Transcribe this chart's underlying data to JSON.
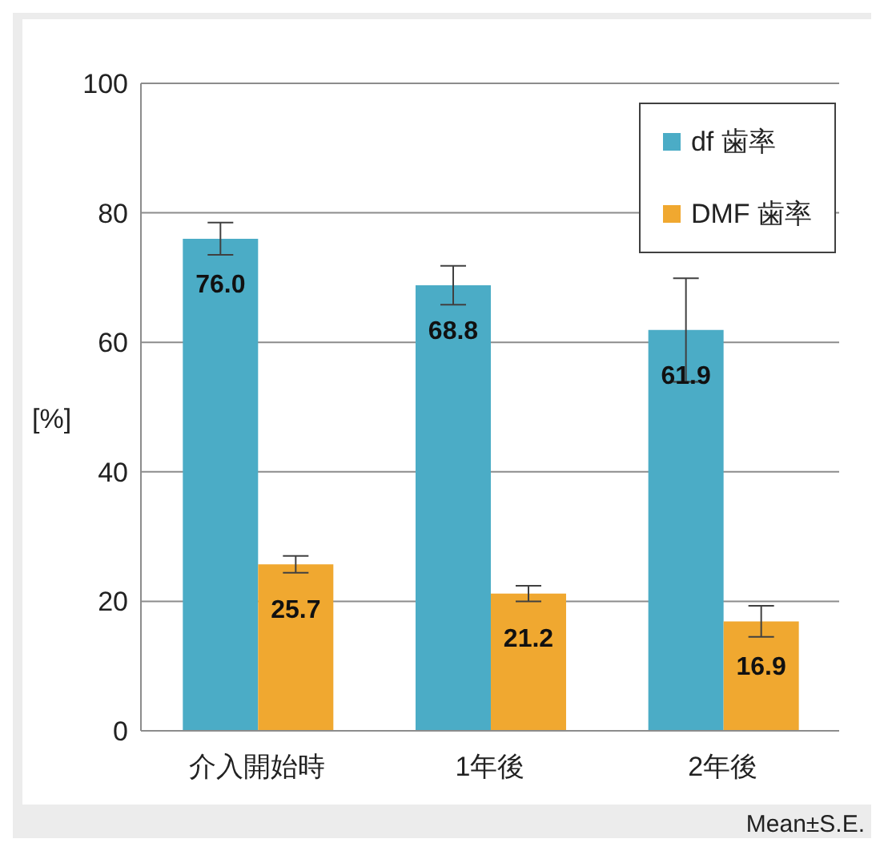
{
  "chart_data": {
    "type": "bar",
    "categories": [
      "介入開始時",
      "1年後",
      "2年後"
    ],
    "series": [
      {
        "name": "df 歯率",
        "color": "#4bacc6",
        "values": [
          76.0,
          68.8,
          61.9
        ],
        "value_labels": [
          "76.0",
          "68.8",
          "61.9"
        ],
        "errors": [
          2.5,
          3,
          8
        ]
      },
      {
        "name": "DMF 歯率",
        "color": "#f0a830",
        "values": [
          25.7,
          21.2,
          16.9
        ],
        "value_labels": [
          "25.7",
          "21.2",
          "16.9"
        ],
        "errors": [
          1.3,
          1.2,
          2.4
        ]
      }
    ],
    "ylabel": "[%]",
    "ylim": [
      0,
      100
    ],
    "yticks": [
      0,
      20,
      40,
      60,
      80,
      100
    ],
    "grid": "y",
    "legend": "top right",
    "annotations": [
      "Mean±S.E."
    ]
  }
}
